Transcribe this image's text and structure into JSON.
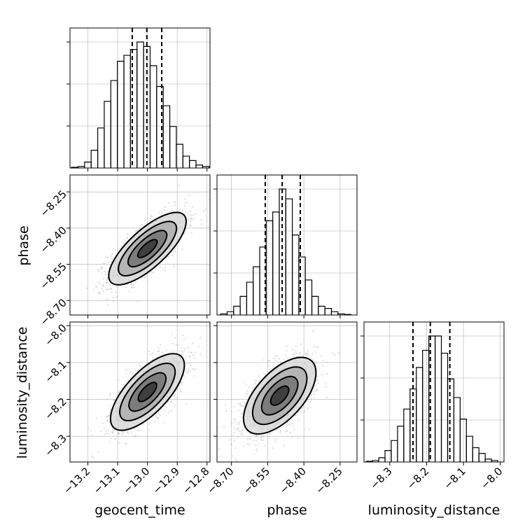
{
  "chart_data": {
    "type": "corner",
    "parameters": [
      "geocent_time",
      "phase",
      "luminosity_distance"
    ],
    "axes": {
      "geocent_time": {
        "label": "geocent_time",
        "range": [
          -13.26,
          -12.79
        ],
        "ticks": [
          -13.2,
          -13.1,
          -13.0,
          -12.9,
          -12.8
        ],
        "tick_labels": [
          "−13.2",
          "−13.1",
          "−13.0",
          "−12.9",
          "−12.8"
        ]
      },
      "phase": {
        "label": "phase",
        "range": [
          -8.76,
          -8.18
        ],
        "ticks": [
          -8.7,
          -8.55,
          -8.4,
          -8.25
        ],
        "tick_labels": [
          "−8.70",
          "−8.55",
          "−8.40",
          "−8.25"
        ]
      },
      "luminosity_distance": {
        "label": "luminosity_distance",
        "range": [
          -8.37,
          -7.99
        ],
        "ticks": [
          -8.3,
          -8.2,
          -8.1,
          -8.0
        ],
        "tick_labels": [
          "−8.3",
          "−8.2",
          "−8.1",
          "−8.0"
        ]
      }
    },
    "histograms": [
      {
        "parameter": "geocent_time",
        "bin_edges": [
          -13.255,
          -13.233,
          -13.211,
          -13.189,
          -13.167,
          -13.145,
          -13.123,
          -13.101,
          -13.079,
          -13.057,
          -13.035,
          -13.013,
          -12.991,
          -12.969,
          -12.947,
          -12.925,
          -12.903,
          -12.881,
          -12.859,
          -12.837,
          -12.815,
          -12.793
        ],
        "counts": [
          0.5,
          1,
          4,
          12,
          27,
          45,
          59,
          72,
          76,
          80,
          85,
          82,
          69,
          55,
          42,
          28,
          16,
          8,
          5,
          2,
          1
        ],
        "quantiles": [
          -13.051,
          -13.002,
          -12.952
        ]
      },
      {
        "parameter": "phase",
        "bin_edges": [
          -8.745,
          -8.718,
          -8.691,
          -8.664,
          -8.637,
          -8.61,
          -8.583,
          -8.556,
          -8.529,
          -8.502,
          -8.475,
          -8.448,
          -8.421,
          -8.394,
          -8.367,
          -8.34,
          -8.313,
          -8.286,
          -8.259,
          -8.232,
          -8.205
        ],
        "counts": [
          1,
          3,
          8,
          17,
          30,
          44,
          62,
          86,
          94,
          115,
          106,
          73,
          53,
          32,
          17,
          8,
          6,
          3,
          1,
          0.5
        ],
        "quantiles": [
          -8.56,
          -8.49,
          -8.415
        ]
      },
      {
        "parameter": "luminosity_distance",
        "bin_edges": [
          -8.364,
          -8.347,
          -8.33,
          -8.313,
          -8.296,
          -8.279,
          -8.262,
          -8.245,
          -8.228,
          -8.211,
          -8.194,
          -8.177,
          -8.16,
          -8.143,
          -8.126,
          -8.109,
          -8.092,
          -8.075,
          -8.058,
          -8.041,
          -8.024,
          -8.007
        ],
        "counts": [
          0.5,
          1,
          3,
          8,
          15,
          25,
          37,
          51,
          66,
          78,
          88,
          88,
          76,
          58,
          45,
          30,
          18,
          10,
          6,
          2,
          1
        ],
        "quantiles": [
          -8.237,
          -8.19,
          -8.137
        ]
      }
    ],
    "pairs": [
      {
        "x": "geocent_time",
        "y": "phase",
        "center": [
          -13.0,
          -8.485
        ],
        "spread": [
          0.065,
          0.075
        ],
        "correlation": 0.75
      },
      {
        "x": "geocent_time",
        "y": "luminosity_distance",
        "center": [
          -13.0,
          -8.18
        ],
        "spread": [
          0.062,
          0.052
        ],
        "correlation": 0.7
      },
      {
        "x": "phase",
        "y": "luminosity_distance",
        "center": [
          -8.5,
          -8.19
        ],
        "spread": [
          0.075,
          0.052
        ],
        "correlation": 0.6
      }
    ],
    "contour_levels_sigma": [
      0.5,
      1.0,
      1.5,
      2.0
    ],
    "grid": true,
    "colors": {
      "line": "#000000",
      "grid": "#b0b0b0",
      "scatter": "#bdbdbd"
    }
  }
}
